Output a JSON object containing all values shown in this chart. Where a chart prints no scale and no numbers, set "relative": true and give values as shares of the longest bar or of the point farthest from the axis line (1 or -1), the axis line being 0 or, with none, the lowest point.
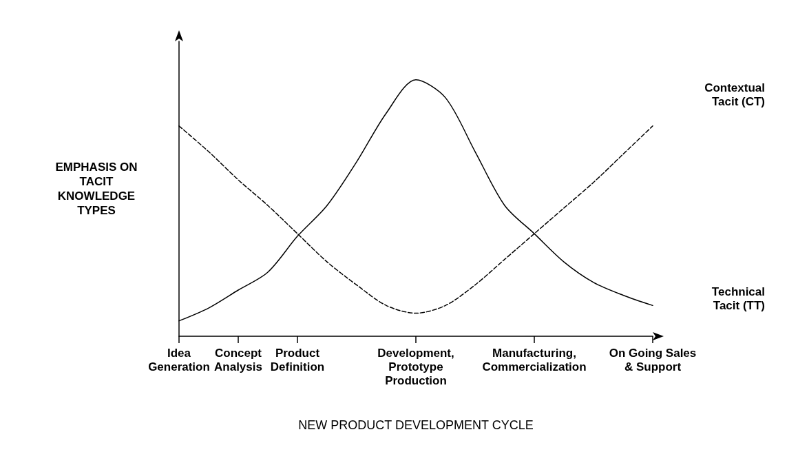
{
  "chart_data": {
    "type": "line",
    "relative": true,
    "marker": "none",
    "grid": false,
    "legend": false,
    "tick_labels": "x",
    "xlabel": "NEW PRODUCT DEVELOPMENT CYCLE",
    "ylabel": "EMPHASIS ON TACIT KNOWLEDGE TYPES",
    "categories": [
      "Idea Generation",
      null,
      "Concept Analysis",
      null,
      "Product Definition",
      null,
      null,
      null,
      "Development, Prototype Production",
      null,
      null,
      null,
      "Manufacturing, Commercialization",
      null,
      null,
      null,
      "On Going Sales & Support"
    ],
    "series": [
      {
        "name": "Contextual Tacit (CT)",
        "color": "#000000",
        "line_style": "dashed",
        "values": [
          0.82,
          0.72,
          0.61,
          0.51,
          0.4,
          0.29,
          0.2,
          0.12,
          0.09,
          0.12,
          0.2,
          0.3,
          0.4,
          0.5,
          0.6,
          0.71,
          0.82
        ]
      },
      {
        "name": "Technical Tacit (TT)",
        "color": "#000000",
        "line_style": "solid",
        "values": [
          0.06,
          0.11,
          0.18,
          0.25,
          0.39,
          0.51,
          0.68,
          0.87,
          1,
          0.93,
          0.72,
          0.51,
          0.4,
          0.29,
          0.21,
          0.16,
          0.12
        ]
      }
    ]
  }
}
